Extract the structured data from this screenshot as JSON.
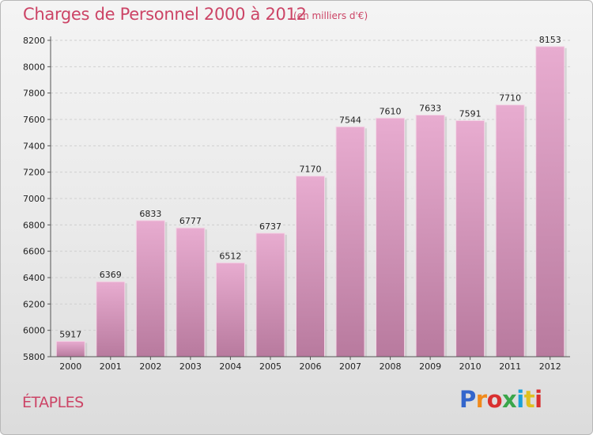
{
  "title": "Charges de Personnel 2000 à 2012",
  "subtitle": "(en milliers d'€)",
  "city": "ÉTAPLES",
  "logo": {
    "text": "Proxiti",
    "colors": [
      "#3366cc",
      "#f08a1c",
      "#d93030",
      "#3aa64a",
      "#1aa0d8",
      "#e0c020",
      "#d93030"
    ]
  },
  "colors": {
    "bar": "#d48fb2",
    "bar_light": "#e6a9ca",
    "bar_dark": "#b8779c",
    "title": "#cc4466"
  },
  "chart_data": {
    "type": "bar",
    "title": "Charges de Personnel 2000 à 2012",
    "categories": [
      "2000",
      "2001",
      "2002",
      "2003",
      "2004",
      "2005",
      "2006",
      "2007",
      "2008",
      "2009",
      "2010",
      "2011",
      "2012"
    ],
    "values": [
      5917,
      6369,
      6833,
      6777,
      6512,
      6737,
      7170,
      7544,
      7610,
      7633,
      7591,
      7710,
      8153
    ],
    "yticks": [
      5800,
      6000,
      6200,
      6400,
      6600,
      6800,
      7000,
      7200,
      7400,
      7600,
      7800,
      8000,
      8200
    ],
    "ylim": [
      5800,
      8200
    ],
    "grid": true
  }
}
